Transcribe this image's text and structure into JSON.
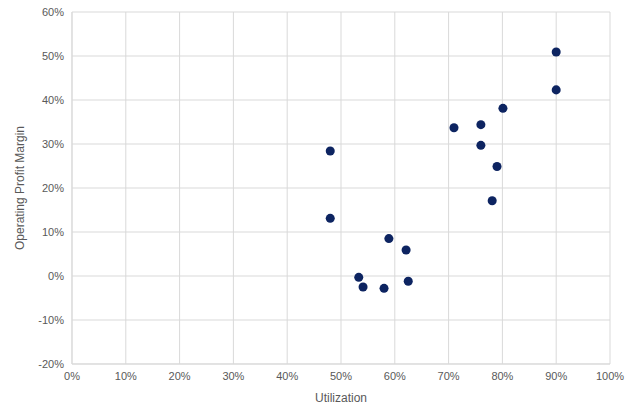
{
  "chart_data": {
    "type": "scatter",
    "x_label": "Utilization",
    "y_label": "Operating Profit Margin",
    "color": "#0d2461",
    "marker": "circle",
    "grid": true,
    "x": [
      48.0,
      48.0,
      53.3,
      54.1,
      58.0,
      58.9,
      62.1,
      62.5,
      71.0,
      76.0,
      76.0,
      80.1,
      79.0,
      78.1,
      90.0,
      90.0
    ],
    "values": [
      28.4,
      13.1,
      -0.3,
      -2.5,
      -2.8,
      8.5,
      5.9,
      -1.2,
      33.7,
      34.4,
      29.7,
      38.1,
      24.9,
      17.1,
      50.9,
      42.3
    ],
    "xlim": [
      0,
      100
    ],
    "xticks": [
      {
        "value": 0,
        "label": "0%"
      },
      {
        "value": 10,
        "label": "10%"
      },
      {
        "value": 20,
        "label": "20%"
      },
      {
        "value": 30,
        "label": "30%"
      },
      {
        "value": 40,
        "label": "40%"
      },
      {
        "value": 50,
        "label": "50%"
      },
      {
        "value": 60,
        "label": "60%"
      },
      {
        "value": 70,
        "label": "70%"
      },
      {
        "value": 80,
        "label": "80%"
      },
      {
        "value": 90,
        "label": "90%"
      },
      {
        "value": 100,
        "label": "100%"
      }
    ],
    "ylim": [
      -20,
      60
    ],
    "yticks": [
      {
        "value": -20,
        "label": "-20%"
      },
      {
        "value": -10,
        "label": "-10%"
      },
      {
        "value": 0,
        "label": "0%"
      },
      {
        "value": 10,
        "label": "10%"
      },
      {
        "value": 20,
        "label": "20%"
      },
      {
        "value": 30,
        "label": "30%"
      },
      {
        "value": 40,
        "label": "40%"
      },
      {
        "value": 50,
        "label": "50%"
      },
      {
        "value": 60,
        "label": "60%"
      }
    ]
  }
}
